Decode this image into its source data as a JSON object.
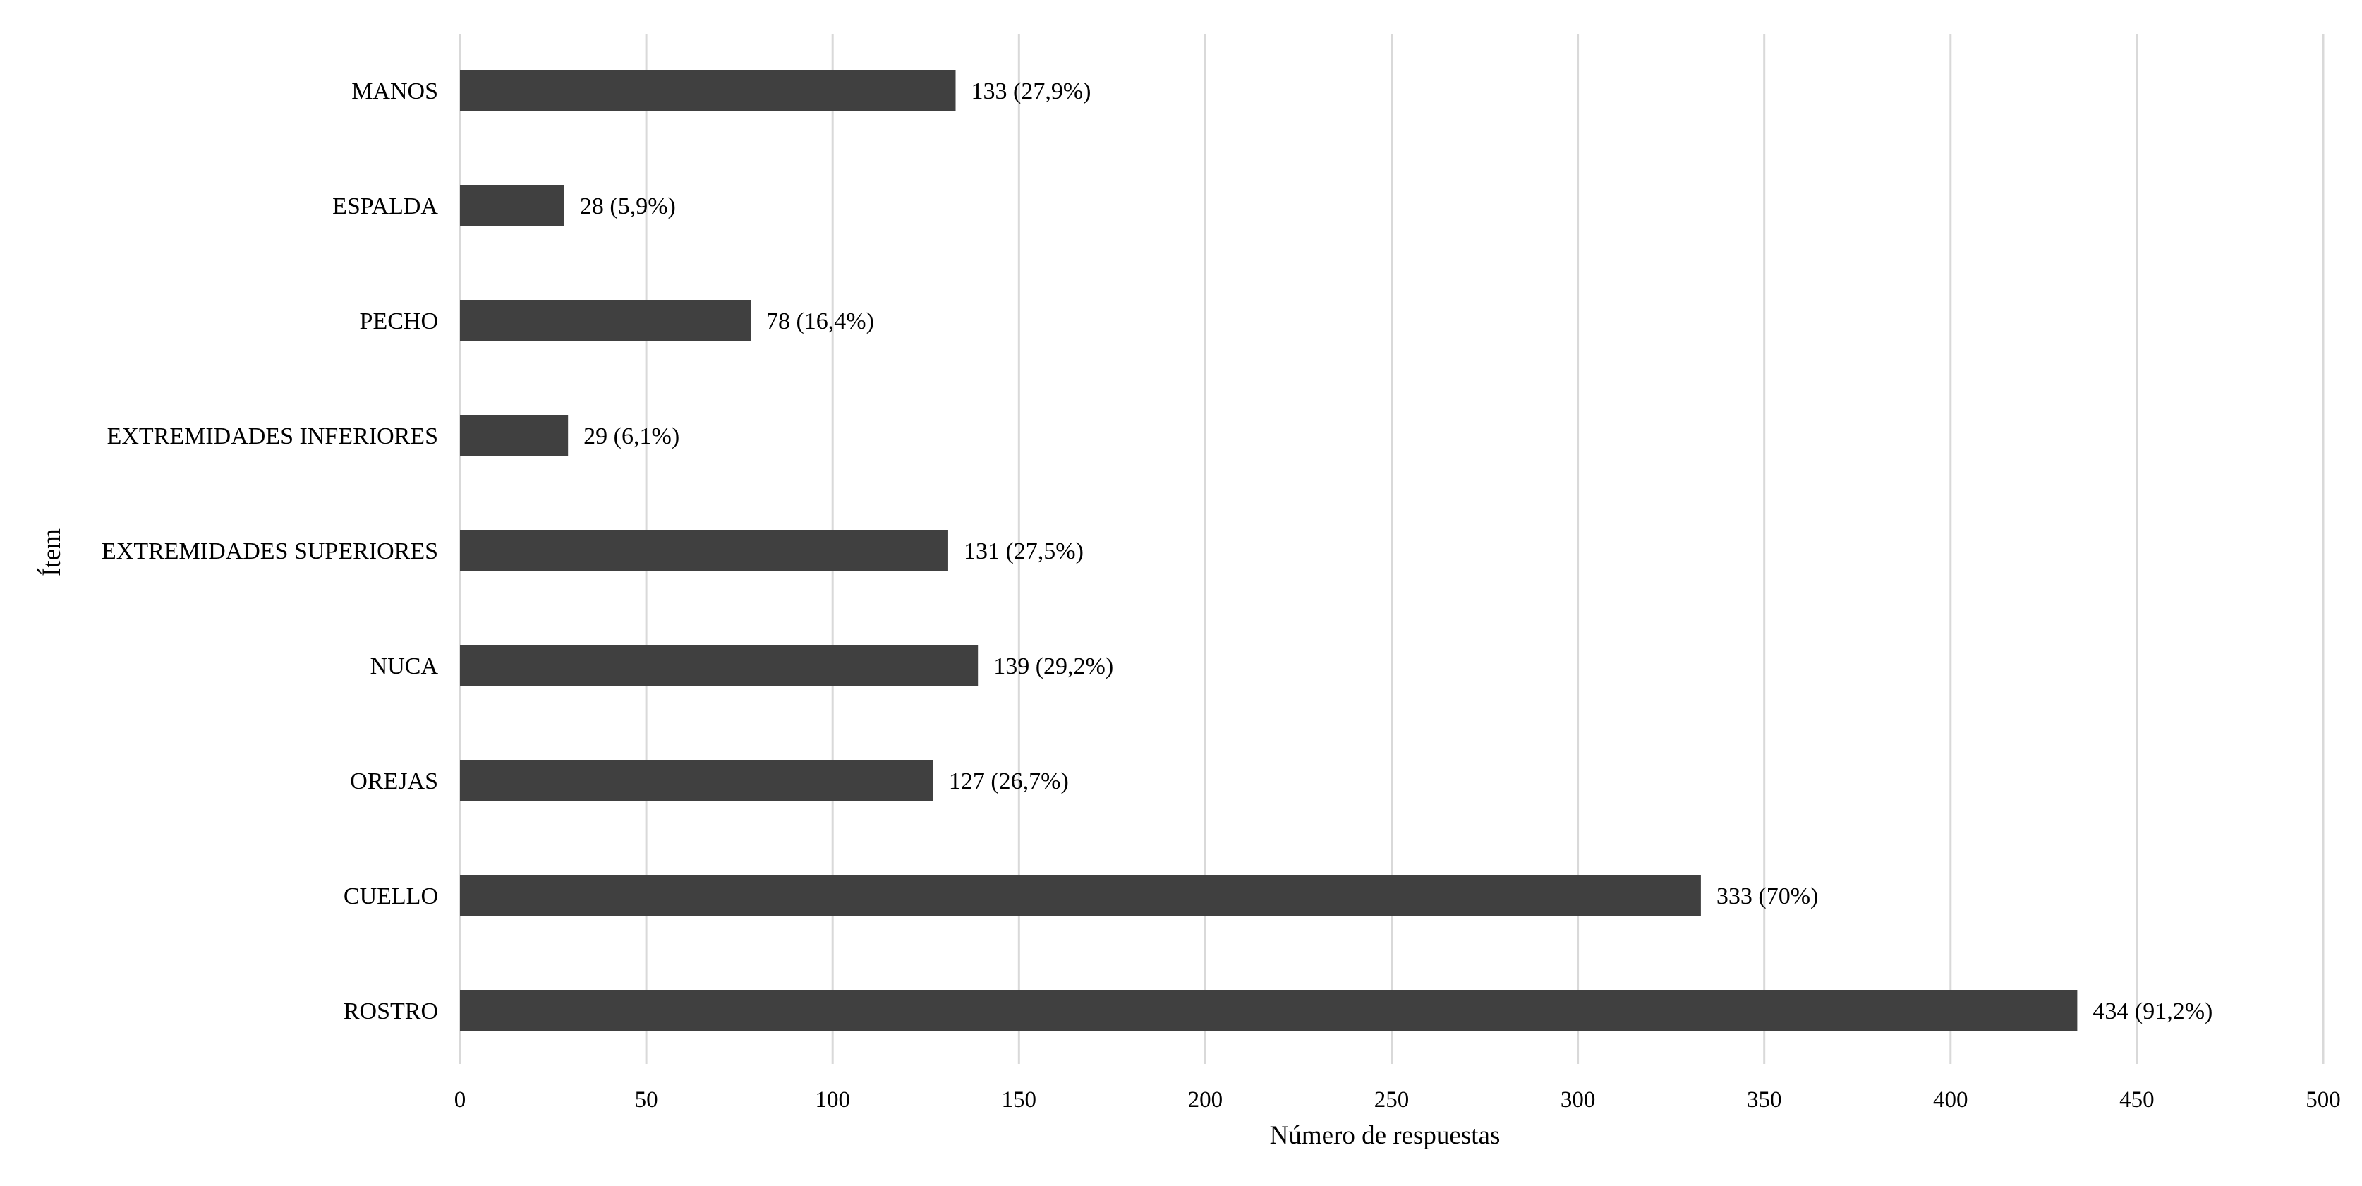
{
  "chart_data": {
    "type": "bar",
    "orientation": "horizontal",
    "categories": [
      "MANOS",
      "ESPALDA",
      "PECHO",
      "EXTREMIDADES INFERIORES",
      "EXTREMIDADES SUPERIORES",
      "NUCA",
      "OREJAS",
      "CUELLO",
      "ROSTRO"
    ],
    "values": [
      133,
      28,
      78,
      29,
      131,
      139,
      127,
      333,
      434
    ],
    "data_labels": [
      "133 (27,9%)",
      "28 (5,9%)",
      "78 (16,4%)",
      "29 (6,1%)",
      "131 (27,5%)",
      "139 (29,2%)",
      "127 (26,7%)",
      "333 (70%)",
      "434 (91,2%)"
    ],
    "xlabel": "Número de respuestas",
    "ylabel": "Ítem",
    "xlim": [
      0,
      500
    ],
    "xticks": [
      0,
      50,
      100,
      150,
      200,
      250,
      300,
      350,
      400,
      450,
      500
    ],
    "xtick_labels": [
      "0",
      "50",
      "100",
      "150",
      "200",
      "250",
      "300",
      "350",
      "400",
      "450",
      "500"
    ],
    "grid": "vertical",
    "legend": "none",
    "colors": {
      "bar": "#404040",
      "grid": "#d9d9d9",
      "text": "#000000"
    }
  }
}
